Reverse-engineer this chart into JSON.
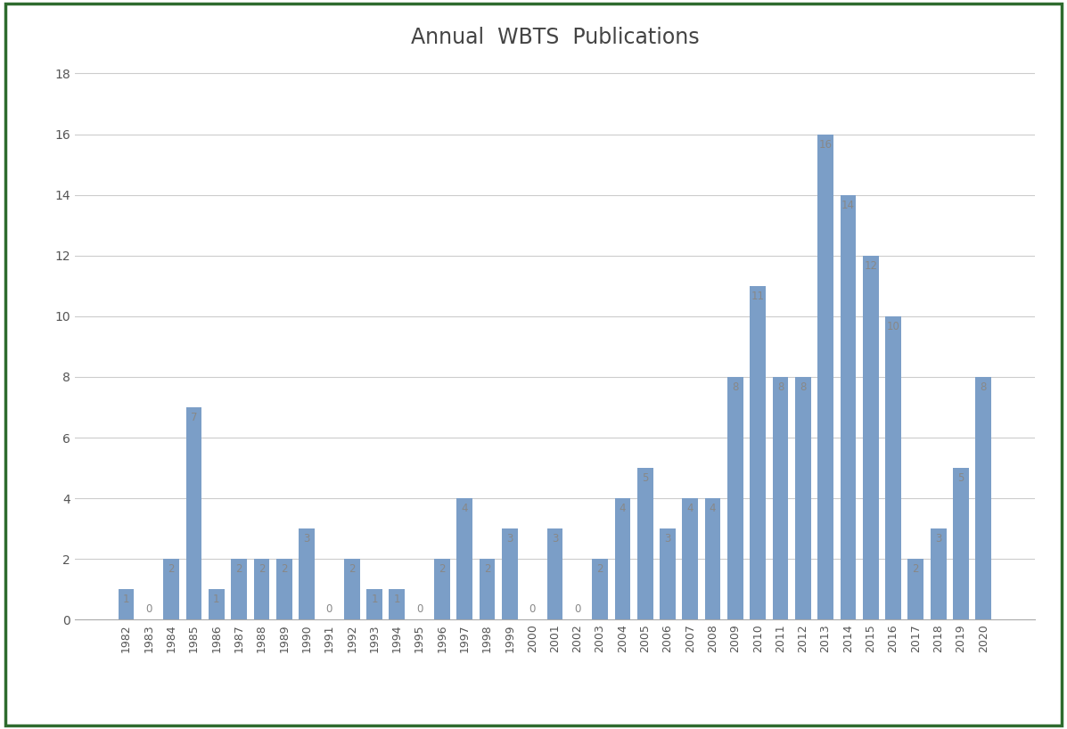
{
  "title": "Annual  WBTS  Publications",
  "years": [
    1982,
    1983,
    1984,
    1985,
    1986,
    1987,
    1988,
    1989,
    1990,
    1991,
    1992,
    1993,
    1994,
    1995,
    1996,
    1997,
    1998,
    1999,
    2000,
    2001,
    2002,
    2003,
    2004,
    2005,
    2006,
    2007,
    2008,
    2009,
    2010,
    2011,
    2012,
    2013,
    2014,
    2015,
    2016,
    2017,
    2018,
    2019,
    2020
  ],
  "values": [
    1,
    0,
    2,
    7,
    1,
    2,
    2,
    2,
    3,
    0,
    2,
    1,
    1,
    0,
    2,
    4,
    2,
    3,
    0,
    3,
    0,
    2,
    4,
    5,
    3,
    4,
    4,
    8,
    11,
    8,
    8,
    16,
    14,
    12,
    10,
    2,
    3,
    5,
    8
  ],
  "bar_color": "#7b9ec7",
  "label_color": "#888888",
  "background_color": "#ffffff",
  "border_color": "#2e6b2e",
  "ylim": [
    0,
    18.5
  ],
  "yticks": [
    0,
    2,
    4,
    6,
    8,
    10,
    12,
    14,
    16,
    18
  ],
  "title_fontsize": 17,
  "label_fontsize": 8.5,
  "tick_fontsize": 9,
  "grid_color": "#cccccc",
  "border_linewidth": 2.5
}
